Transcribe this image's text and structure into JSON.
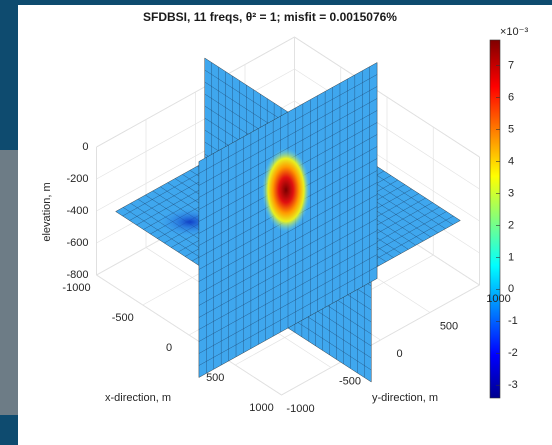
{
  "chart_data": {
    "type": "slice3d",
    "title": "SFDBSI, 11 freqs, θ² = 1; misfit = 0.0015076%",
    "x_label": "x-direction, m",
    "y_label": "y-direction, m",
    "z_label": "elevation, m",
    "xlim": [
      -1000,
      1000
    ],
    "xticks": [
      -1000,
      -500,
      0,
      500,
      1000
    ],
    "ylim": [
      -1000,
      1000
    ],
    "yticks": [
      -1000,
      -500,
      0,
      500,
      1000
    ],
    "zlim": [
      -800,
      0
    ],
    "zticks": [
      0,
      -200,
      -400,
      -600,
      -800
    ],
    "colorbar": {
      "clim": [
        -3.4,
        7.8
      ],
      "ticks": [
        -3,
        -2,
        -1,
        0,
        1,
        2,
        3,
        4,
        5,
        6,
        7
      ],
      "multiplier": "×10⁻³"
    }
  }
}
